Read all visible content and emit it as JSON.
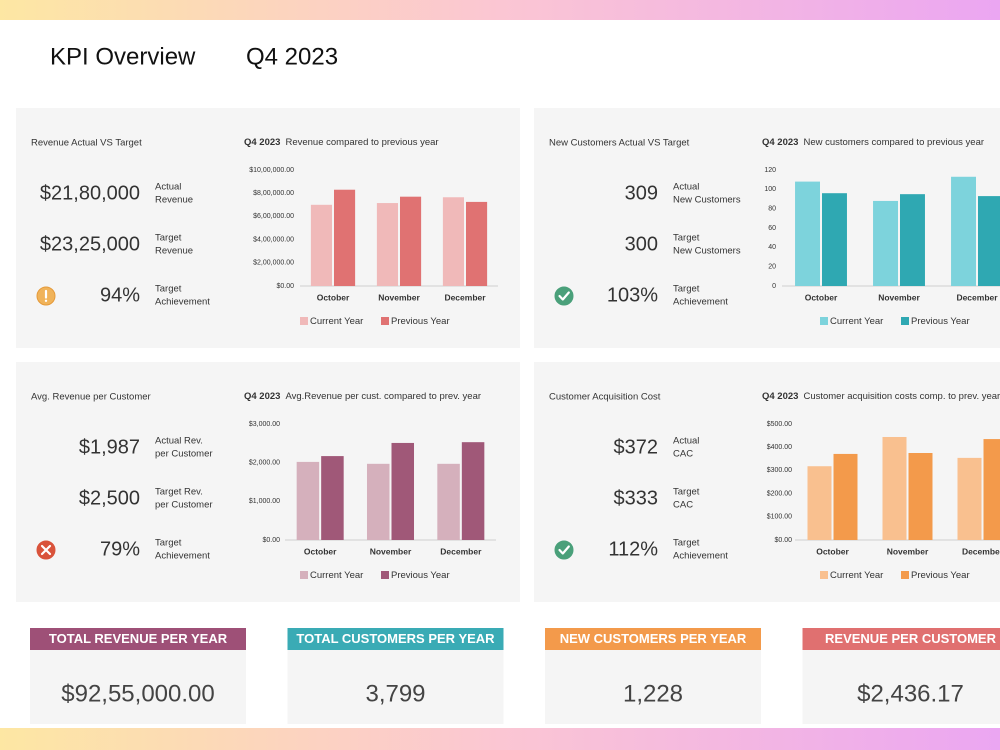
{
  "header": {
    "title": "KPI Overview",
    "period": "Q4 2023"
  },
  "panels": [
    {
      "title": "Revenue Actual VS Target",
      "kpis": [
        {
          "value": "$21,80,000",
          "label": [
            "Actual",
            "Revenue"
          ]
        },
        {
          "value": "$23,25,000",
          "label": [
            "Target",
            "Revenue"
          ]
        },
        {
          "value": "94%",
          "label": [
            "Target",
            "Achievement"
          ]
        }
      ]
    },
    {
      "title": "New Customers Actual VS Target",
      "kpis": [
        {
          "value": "309",
          "label": [
            "Actual",
            "New Customers"
          ]
        },
        {
          "value": "300",
          "label": [
            "Target",
            "New Customers"
          ]
        },
        {
          "value": "103%",
          "label": [
            "Target",
            "Achievement"
          ]
        }
      ]
    },
    {
      "title": "Avg. Revenue per Customer",
      "kpis": [
        {
          "value": "$1,987",
          "label": [
            "Actual Rev.",
            "per Customer"
          ]
        },
        {
          "value": "$2,500",
          "label": [
            "Target Rev.",
            "per Customer"
          ]
        },
        {
          "value": "79%",
          "label": [
            "Target",
            "Achievement"
          ]
        }
      ]
    },
    {
      "title": "Customer Acquisition Cost",
      "kpis": [
        {
          "value": "$372",
          "label": [
            "Actual",
            "CAC"
          ]
        },
        {
          "value": "$333",
          "label": [
            "Target",
            "CAC"
          ]
        },
        {
          "value": "112%",
          "label": [
            "Target",
            "Achievement"
          ]
        }
      ]
    }
  ],
  "chart_data": [
    {
      "type": "bar",
      "period": "Q4 2023",
      "title": "Revenue compared to previous year",
      "categories": [
        "October",
        "November",
        "December"
      ],
      "series": [
        {
          "name": "Current Year",
          "color": "#f0b9b9",
          "values": [
            700000,
            715000,
            765000
          ]
        },
        {
          "name": "Previous Year",
          "color": "#e07272",
          "values": [
            830000,
            770000,
            725000
          ]
        }
      ],
      "ylim": [
        0,
        1000000
      ],
      "yticks": [
        {
          "value": 0,
          "label": "$0.00"
        },
        {
          "value": 200000,
          "label": "$2,00,000.00"
        },
        {
          "value": 400000,
          "label": "$4,00,000.00"
        },
        {
          "value": 600000,
          "label": "$6,00,000.00"
        },
        {
          "value": 800000,
          "label": "$8,00,000.00"
        },
        {
          "value": 1000000,
          "label": "$10,00,000.00"
        }
      ]
    },
    {
      "type": "bar",
      "period": "Q4 2023",
      "title": "New customers compared to previous year",
      "categories": [
        "October",
        "November",
        "December"
      ],
      "series": [
        {
          "name": "Current Year",
          "color": "#7dd3dc",
          "values": [
            108,
            88,
            113
          ]
        },
        {
          "name": "Previous Year",
          "color": "#2fa8b2",
          "values": [
            96,
            95,
            93
          ]
        }
      ],
      "ylim": [
        0,
        120
      ],
      "yticks": [
        0,
        20,
        40,
        60,
        80,
        100,
        120
      ]
    },
    {
      "type": "bar",
      "period": "Q4 2023",
      "title": "Avg.Revenue per cust. compared to prev. year",
      "categories": [
        "October",
        "November",
        "December"
      ],
      "series": [
        {
          "name": "Current Year",
          "color": "#d5b0bc",
          "values": [
            2020,
            1970,
            1970
          ]
        },
        {
          "name": "Previous Year",
          "color": "#a05878",
          "values": [
            2170,
            2510,
            2530
          ]
        }
      ],
      "ylim": [
        0,
        3000
      ],
      "yticks": [
        {
          "value": 0,
          "label": "$0.00"
        },
        {
          "value": 1000,
          "label": "$1,000.00"
        },
        {
          "value": 2000,
          "label": "$2,000.00"
        },
        {
          "value": 3000,
          "label": "$3,000.00"
        }
      ]
    },
    {
      "type": "bar",
      "period": "Q4 2023",
      "title": "Customer acquisition costs comp. to prev. year",
      "categories": [
        "October",
        "November",
        "December"
      ],
      "series": [
        {
          "name": "Current Year",
          "color": "#f9c08f",
          "values": [
            318,
            444,
            354
          ]
        },
        {
          "name": "Previous Year",
          "color": "#f39a4b",
          "values": [
            371,
            375,
            435
          ]
        }
      ],
      "ylim": [
        0,
        500
      ],
      "yticks": [
        {
          "value": 0,
          "label": "$0.00"
        },
        {
          "value": 100,
          "label": "$100.00"
        },
        {
          "value": 200,
          "label": "$200.00"
        },
        {
          "value": 300,
          "label": "$300.00"
        },
        {
          "value": 400,
          "label": "$400.00"
        },
        {
          "value": 500,
          "label": "$500.00"
        }
      ]
    }
  ],
  "totals": [
    {
      "title": "TOTAL REVENUE PER YEAR",
      "value": "$92,55,000.00",
      "color": "#9e5077"
    },
    {
      "title": "TOTAL CUSTOMERS PER YEAR",
      "value": "3,799",
      "color": "#3aabb5"
    },
    {
      "title": "NEW CUSTOMERS PER YEAR",
      "value": "1,228",
      "color": "#f39a4b"
    },
    {
      "title": "REVENUE PER CUSTOMER",
      "value": "$2,436.17",
      "color": "#e07070"
    }
  ]
}
